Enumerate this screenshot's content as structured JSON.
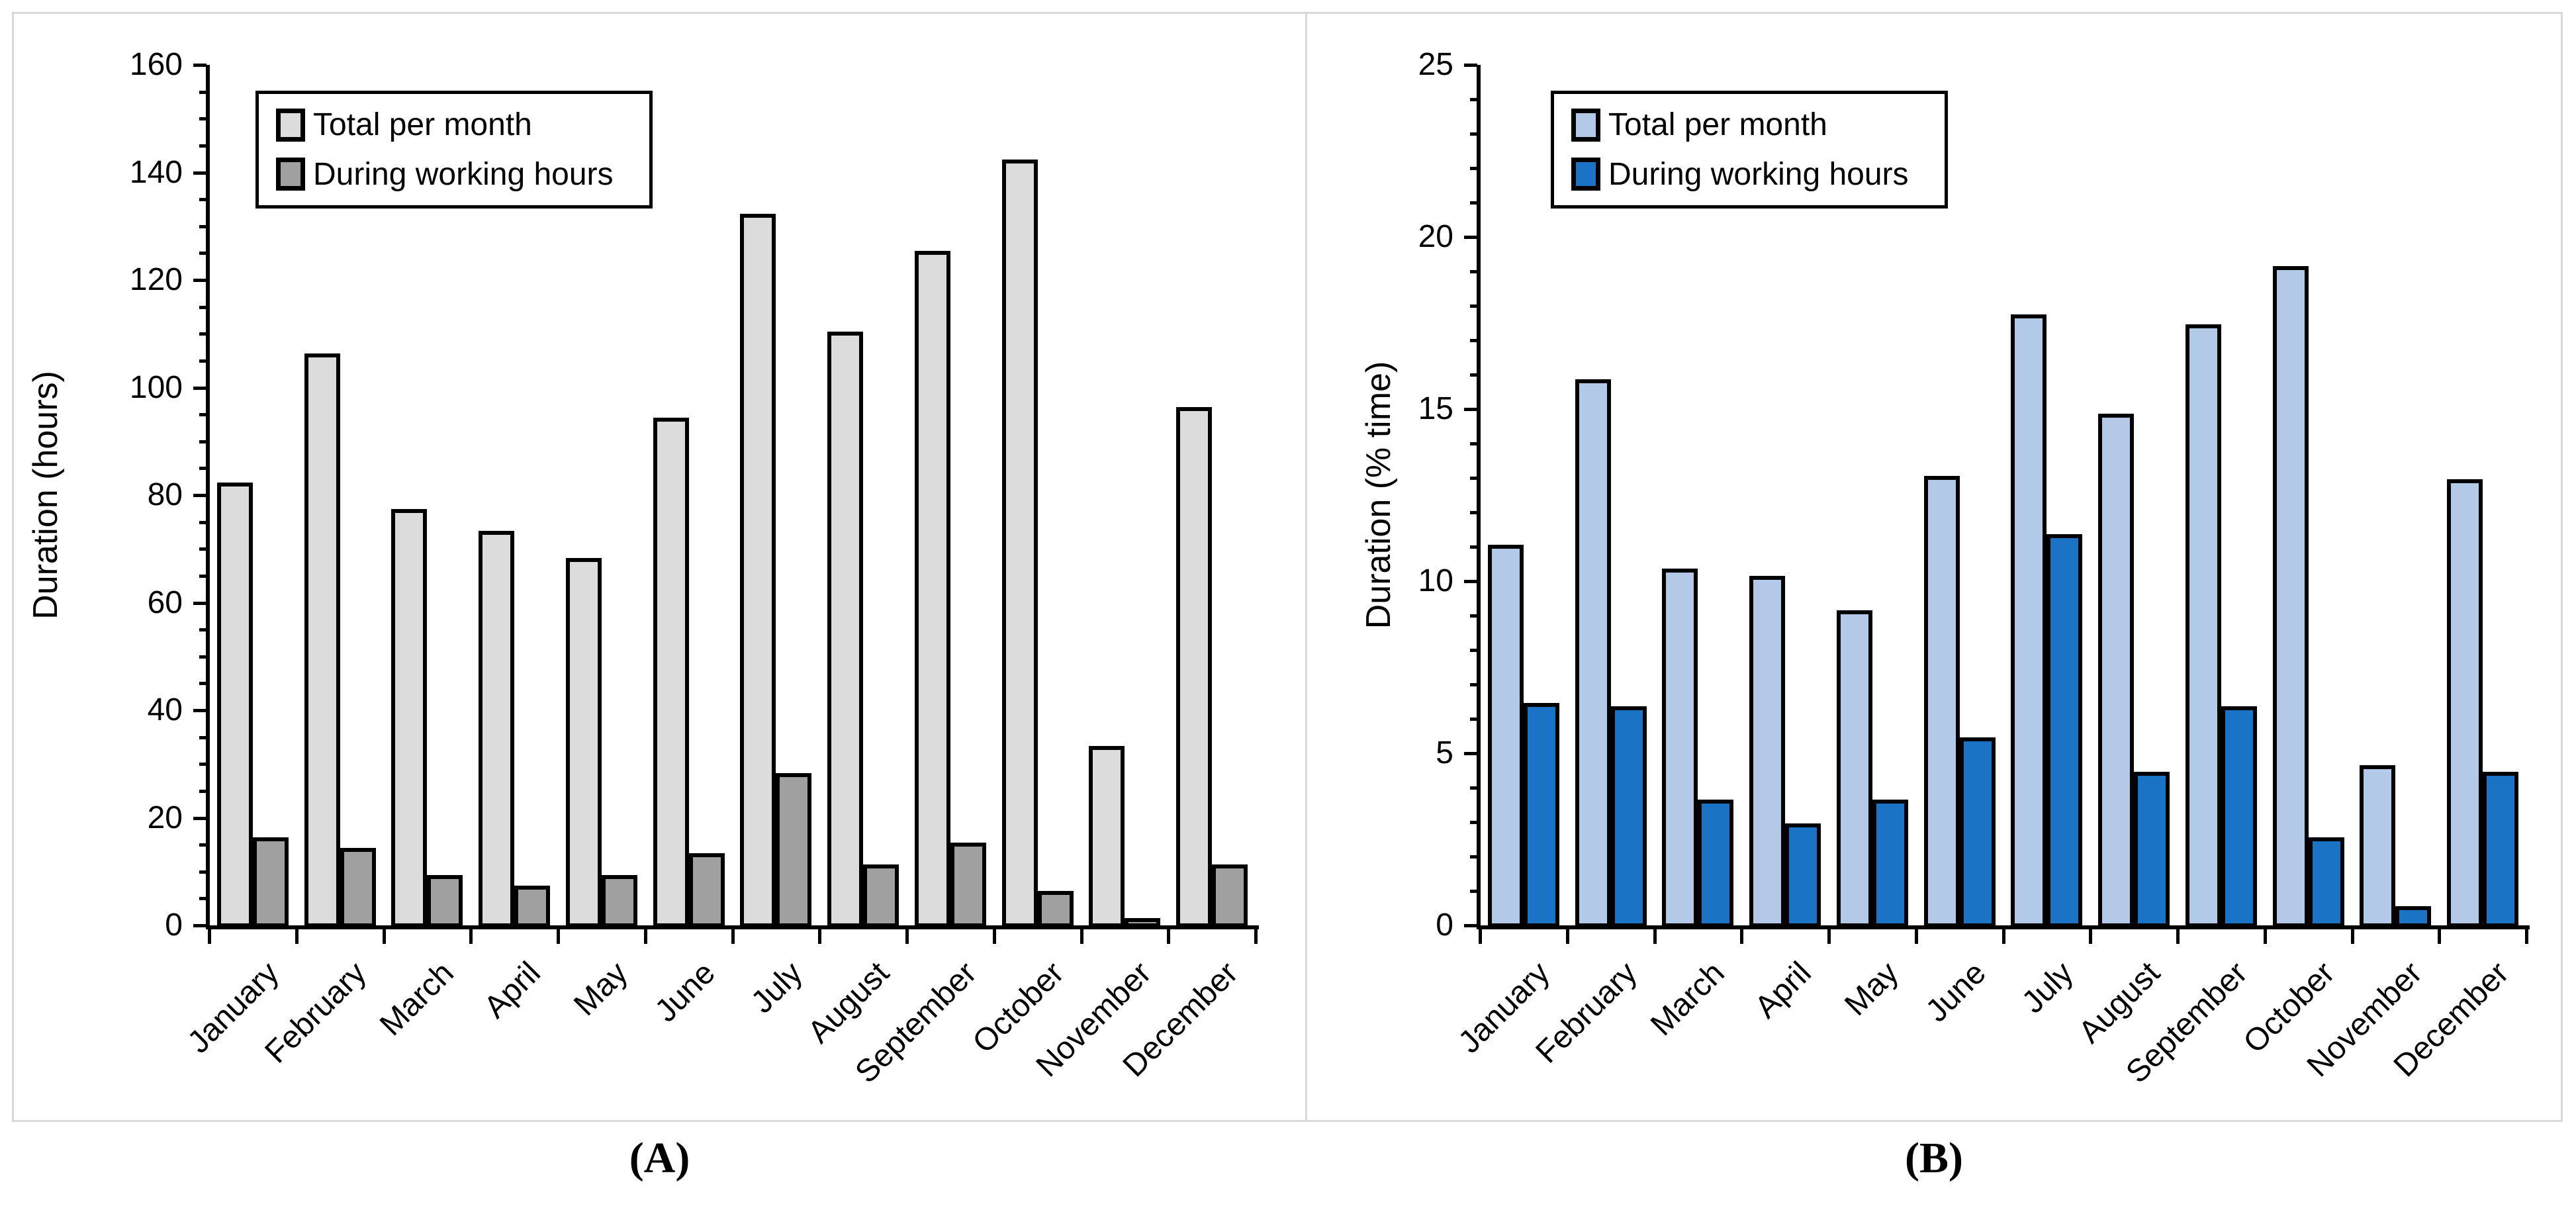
{
  "figure": {
    "captions": {
      "a": "(A)",
      "b": "(B)"
    }
  },
  "colors": {
    "panel_border": "#d9d9d9",
    "axis": "#000000",
    "text": "#000000",
    "gray_light": "#dcdcdc",
    "gray_dark": "#a0a0a0",
    "blue_light": "#b3c9e8",
    "blue_dark": "#1b73c6"
  },
  "chart_data": [
    {
      "type": "bar",
      "panel": "A",
      "title": "",
      "xlabel": "",
      "ylabel": "Duration (hours)",
      "ylim": [
        0,
        160
      ],
      "y_major_step": 20,
      "y_minor_step": 5,
      "grid": false,
      "legend_position": "top-left",
      "categories": [
        "January",
        "February",
        "March",
        "April",
        "May",
        "June",
        "July",
        "August",
        "September",
        "October",
        "November",
        "December"
      ],
      "series": [
        {
          "name": "Total per month",
          "color": "#dcdcdc",
          "values": [
            82,
            106,
            77,
            73,
            68,
            94,
            132,
            110,
            125,
            142,
            33,
            96
          ]
        },
        {
          "name": "During working hours",
          "color": "#a0a0a0",
          "values": [
            16,
            14,
            9,
            7,
            9,
            13,
            28,
            11,
            15,
            6,
            1,
            11
          ]
        }
      ]
    },
    {
      "type": "bar",
      "panel": "B",
      "title": "",
      "xlabel": "",
      "ylabel": "Duration (% time)",
      "ylim": [
        0,
        25
      ],
      "y_major_step": 5,
      "y_minor_step": 1,
      "grid": false,
      "legend_position": "top-left",
      "categories": [
        "January",
        "February",
        "March",
        "April",
        "May",
        "June",
        "July",
        "August",
        "September",
        "October",
        "November",
        "December"
      ],
      "series": [
        {
          "name": "Total per month",
          "color": "#b3c9e8",
          "values": [
            11.0,
            15.8,
            10.3,
            10.1,
            9.1,
            13.0,
            17.7,
            14.8,
            17.4,
            19.1,
            4.6,
            12.9
          ]
        },
        {
          "name": "During working hours",
          "color": "#1b73c6",
          "values": [
            6.4,
            6.3,
            3.6,
            2.9,
            3.6,
            5.4,
            11.3,
            4.4,
            6.3,
            2.5,
            0.5,
            4.4
          ]
        }
      ]
    }
  ]
}
